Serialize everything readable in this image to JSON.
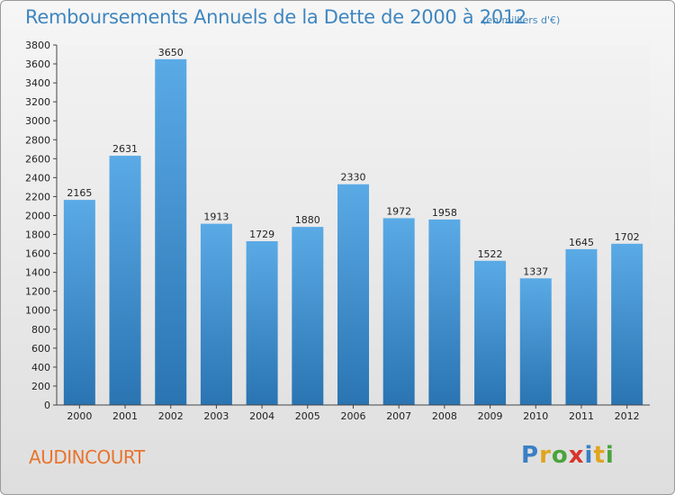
{
  "header": {
    "title": "Remboursements Annuels de la Dette de 2000 à 2012",
    "subtitle": "(en milliers d'€)"
  },
  "footer": {
    "commune": "AUDINCOURT",
    "logo": [
      "P",
      "r",
      "o",
      "x",
      "i",
      "t",
      "i"
    ],
    "logo_colors": [
      "#3a7fc4",
      "#e0a51e",
      "#4aa43c",
      "#d8342c",
      "#3a7fc4",
      "#e0a51e",
      "#4aa43c"
    ]
  },
  "colors": {
    "bar_top": "#5aaae6",
    "bar_bottom": "#2a74b2",
    "plot_bg": "#ececec",
    "text": "#222222",
    "title": "#3f86bf",
    "commune": "#e8742c"
  },
  "chart_data": {
    "type": "bar",
    "categories": [
      "2000",
      "2001",
      "2002",
      "2003",
      "2004",
      "2005",
      "2006",
      "2007",
      "2008",
      "2009",
      "2010",
      "2011",
      "2012"
    ],
    "values": [
      2165,
      2631,
      3650,
      1913,
      1729,
      1880,
      2330,
      1972,
      1958,
      1522,
      1337,
      1645,
      1702
    ],
    "ylim": [
      0,
      3800
    ],
    "ytick_step": 200,
    "grid": false,
    "data_labels": true
  }
}
